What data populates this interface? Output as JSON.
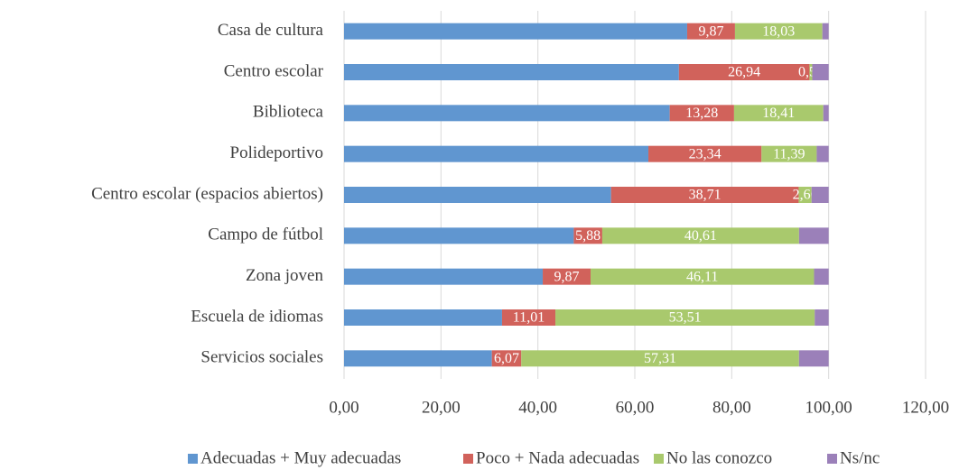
{
  "chart_data": {
    "type": "stacked-bar-horizontal",
    "categories": [
      "Casa de cultura",
      "Centro escolar",
      "Biblioteca",
      "Polideportivo",
      "Centro escolar (espacios abiertos)",
      "Campo de fútbol",
      "Zona joven",
      "Escuela de idiomas",
      "Servicios sociales"
    ],
    "series": [
      {
        "name": "Adecuadas + Muy adecuadas",
        "color": "#6096d0",
        "values": [
          70.8,
          69.1,
          67.2,
          62.8,
          55.1,
          47.4,
          41.0,
          32.6,
          30.5
        ]
      },
      {
        "name": "Poco + Nada adecuadas",
        "color": "#d1625b",
        "values": [
          9.87,
          26.94,
          13.28,
          23.34,
          38.71,
          5.88,
          9.87,
          11.01,
          6.07
        ],
        "value_labels": [
          "9,87",
          "26,94",
          "13,28",
          "23,34",
          "38,71",
          "5,88",
          "9,87",
          "11,01",
          "6,07"
        ]
      },
      {
        "name": "No las conozco",
        "color": "#a9c96d",
        "values": [
          18.03,
          0.57,
          18.41,
          11.39,
          2.66,
          40.61,
          46.11,
          53.51,
          57.31
        ],
        "value_labels": [
          "18,03",
          "0,57",
          "18,41",
          "11,39",
          "2,66",
          "40,61",
          "46,11",
          "53,51",
          "57,31"
        ]
      },
      {
        "name": "Ns/nc",
        "color": "#9b80b9",
        "values": [
          1.3,
          3.39,
          1.11,
          2.47,
          3.53,
          6.11,
          3.02,
          2.88,
          6.12
        ]
      }
    ],
    "xlim": [
      0,
      120
    ],
    "xticks": [
      {
        "value": 0,
        "label": "0,00"
      },
      {
        "value": 20,
        "label": "20,00"
      },
      {
        "value": 40,
        "label": "40,00"
      },
      {
        "value": 60,
        "label": "60,00"
      },
      {
        "value": 80,
        "label": "80,00"
      },
      {
        "value": 100,
        "label": "100,00"
      },
      {
        "value": 120,
        "label": "120,00"
      }
    ],
    "grid": true,
    "legend": "bottom"
  }
}
